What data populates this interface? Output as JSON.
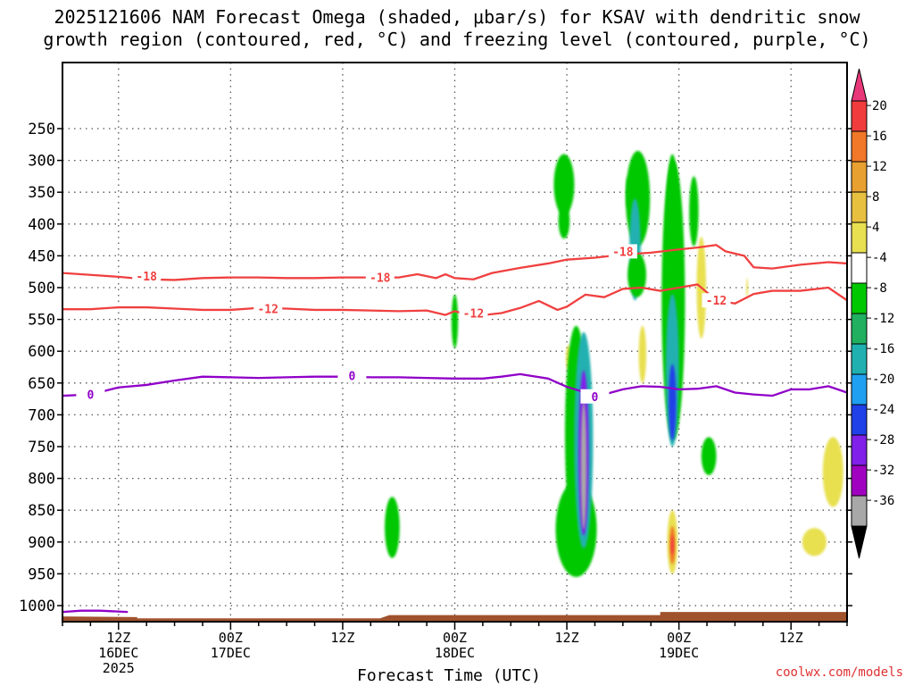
{
  "title": {
    "line1": "2025121606 NAM Forecast Omega (shaded, μbar/s) for KSAV with dendritic snow",
    "line2": "growth region (contoured, red, °C) and freezing level (contoured, purple, °C)"
  },
  "credit": "coolwx.com/models",
  "chart_data": {
    "type": "heatmap",
    "xlabel": "Forecast Time (UTC)",
    "x_unit": "forecast hour",
    "xlim": [
      6,
      90
    ],
    "x_ticks": [
      {
        "hour": 12,
        "lines": [
          "12Z",
          "16DEC",
          "2025"
        ]
      },
      {
        "hour": 24,
        "lines": [
          "00Z",
          "17DEC"
        ]
      },
      {
        "hour": 36,
        "lines": [
          "12Z"
        ]
      },
      {
        "hour": 48,
        "lines": [
          "00Z",
          "18DEC"
        ]
      },
      {
        "hour": 60,
        "lines": [
          "12Z"
        ]
      },
      {
        "hour": 72,
        "lines": [
          "00Z",
          "19DEC"
        ]
      },
      {
        "hour": 84,
        "lines": [
          "12Z"
        ]
      }
    ],
    "y_unit": "hPa",
    "ylim": [
      1030,
      200
    ],
    "y_ticks": [
      250,
      300,
      350,
      400,
      450,
      500,
      550,
      600,
      650,
      700,
      750,
      800,
      850,
      900,
      950,
      1000
    ],
    "grid": true,
    "colorbar": {
      "position": "right",
      "ticks": [
        20,
        16,
        12,
        8,
        4,
        -4,
        -8,
        -12,
        -16,
        -20,
        -24,
        -28,
        -32,
        -36
      ],
      "colors": [
        "#e8387a",
        "#f03c3c",
        "#f07828",
        "#e8a030",
        "#e8c040",
        "#e8e050",
        "#ffffff",
        "#00c800",
        "#20b060",
        "#20b0b0",
        "#20a0f0",
        "#2040e8",
        "#8020e8",
        "#a000c0",
        "#a8a8a8",
        "#000000"
      ]
    },
    "contours": [
      {
        "level": "-18",
        "color": "#f04040",
        "points": [
          [
            6,
            477
          ],
          [
            9,
            480
          ],
          [
            12,
            483
          ],
          [
            15,
            487
          ],
          [
            18,
            488
          ],
          [
            21,
            485
          ],
          [
            24,
            484
          ],
          [
            27,
            484
          ],
          [
            30,
            485
          ],
          [
            33,
            485
          ],
          [
            36,
            484
          ],
          [
            39,
            484
          ],
          [
            42,
            484
          ],
          [
            44,
            479
          ],
          [
            46,
            485
          ],
          [
            47,
            479
          ],
          [
            48,
            485
          ],
          [
            50,
            487
          ],
          [
            52,
            477
          ],
          [
            55,
            469
          ],
          [
            58,
            462
          ],
          [
            60,
            456
          ],
          [
            63,
            453
          ],
          [
            66,
            448
          ],
          [
            69,
            445
          ],
          [
            72,
            440
          ],
          [
            74,
            437
          ],
          [
            76,
            433
          ],
          [
            77,
            443
          ],
          [
            79,
            450
          ],
          [
            80,
            468
          ],
          [
            82,
            470
          ],
          [
            85,
            464
          ],
          [
            88,
            460
          ],
          [
            90,
            462
          ]
        ],
        "labels": [
          [
            15,
            482
          ],
          [
            40,
            484
          ],
          [
            66,
            443
          ]
        ]
      },
      {
        "level": "-12",
        "color": "#f04040",
        "points": [
          [
            6,
            534
          ],
          [
            9,
            534
          ],
          [
            12,
            531
          ],
          [
            15,
            531
          ],
          [
            18,
            533
          ],
          [
            21,
            535
          ],
          [
            24,
            535
          ],
          [
            27,
            532
          ],
          [
            30,
            533
          ],
          [
            33,
            535
          ],
          [
            36,
            535
          ],
          [
            39,
            536
          ],
          [
            42,
            537
          ],
          [
            45,
            536
          ],
          [
            47,
            543
          ],
          [
            48,
            537
          ],
          [
            50,
            545
          ],
          [
            53,
            540
          ],
          [
            55,
            532
          ],
          [
            57,
            521
          ],
          [
            59,
            535
          ],
          [
            60,
            530
          ],
          [
            62,
            511
          ],
          [
            64,
            515
          ],
          [
            66,
            502
          ],
          [
            68,
            500
          ],
          [
            70,
            505
          ],
          [
            72,
            500
          ],
          [
            74,
            495
          ],
          [
            76,
            520
          ],
          [
            78,
            525
          ],
          [
            80,
            510
          ],
          [
            82,
            505
          ],
          [
            85,
            505
          ],
          [
            88,
            500
          ],
          [
            90,
            520
          ]
        ],
        "labels": [
          [
            28,
            533
          ],
          [
            50,
            540
          ],
          [
            76,
            520
          ]
        ]
      },
      {
        "level": "0",
        "color": "#9000c8",
        "points": [
          [
            6,
            670
          ],
          [
            9,
            668
          ],
          [
            12,
            657
          ],
          [
            15,
            653
          ],
          [
            18,
            646
          ],
          [
            21,
            640
          ],
          [
            24,
            641
          ],
          [
            27,
            642
          ],
          [
            30,
            641
          ],
          [
            33,
            640
          ],
          [
            36,
            640
          ],
          [
            39,
            641
          ],
          [
            42,
            641
          ],
          [
            45,
            642
          ],
          [
            48,
            643
          ],
          [
            51,
            643
          ],
          [
            53,
            640
          ],
          [
            55,
            636
          ],
          [
            58,
            643
          ],
          [
            60,
            656
          ],
          [
            62,
            665
          ],
          [
            64,
            668
          ],
          [
            66,
            660
          ],
          [
            68,
            655
          ],
          [
            70,
            656
          ],
          [
            72,
            660
          ],
          [
            74,
            659
          ],
          [
            76,
            655
          ],
          [
            78,
            665
          ],
          [
            80,
            668
          ],
          [
            82,
            670
          ],
          [
            84,
            660
          ],
          [
            86,
            660
          ],
          [
            88,
            655
          ],
          [
            90,
            665
          ]
        ],
        "labels": [
          [
            9,
            668
          ],
          [
            37,
            638
          ],
          [
            63,
            671
          ]
        ]
      },
      {
        "level": "",
        "color": "#9000c8",
        "points": [
          [
            6,
            1010
          ],
          [
            8,
            1008
          ],
          [
            10,
            1008
          ],
          [
            13,
            1010
          ]
        ]
      }
    ],
    "omega_blobs": [
      {
        "h": 41.3,
        "p": 877,
        "dh": 0.8,
        "dp": 48,
        "v": -5
      },
      {
        "h": 48.0,
        "p": 553,
        "dh": 0.35,
        "dp": 42,
        "v": -5
      },
      {
        "h": 59.7,
        "p": 338,
        "dh": 1.1,
        "dp": 48,
        "v": -5
      },
      {
        "h": 59.7,
        "p": 395,
        "dh": 0.6,
        "dp": 28,
        "v": -5
      },
      {
        "h": 60.2,
        "p": 610,
        "dh": 0.3,
        "dp": 20,
        "v": 5
      },
      {
        "h": 61.0,
        "p": 730,
        "dh": 1.2,
        "dp": 170,
        "v": -6
      },
      {
        "h": 61.0,
        "p": 880,
        "dh": 2.2,
        "dp": 75,
        "v": -7
      },
      {
        "h": 61.8,
        "p": 740,
        "dh": 1.0,
        "dp": 170,
        "v": -15
      },
      {
        "h": 61.8,
        "p": 760,
        "dh": 0.55,
        "dp": 130,
        "v": -24
      },
      {
        "h": 61.8,
        "p": 780,
        "dh": 0.3,
        "dp": 100,
        "v": -32
      },
      {
        "h": 66.5,
        "p": 350,
        "dh": 0.15,
        "dp": 25,
        "v": -5
      },
      {
        "h": 67.6,
        "p": 360,
        "dh": 1.3,
        "dp": 75,
        "v": -6
      },
      {
        "h": 67.3,
        "p": 440,
        "dh": 0.6,
        "dp": 80,
        "v": -12
      },
      {
        "h": 67.5,
        "p": 480,
        "dh": 1.0,
        "dp": 35,
        "v": -6
      },
      {
        "h": 68.1,
        "p": 605,
        "dh": 0.4,
        "dp": 45,
        "v": 5
      },
      {
        "h": 70.7,
        "p": 550,
        "dh": 0.15,
        "dp": 18,
        "v": -5
      },
      {
        "h": 71.3,
        "p": 420,
        "dh": 0.75,
        "dp": 130,
        "v": -6
      },
      {
        "h": 71.4,
        "p": 520,
        "dh": 1.25,
        "dp": 220,
        "v": -6
      },
      {
        "h": 71.3,
        "p": 630,
        "dh": 0.7,
        "dp": 120,
        "v": -12
      },
      {
        "h": 71.3,
        "p": 680,
        "dh": 0.4,
        "dp": 60,
        "v": -22
      },
      {
        "h": 71.3,
        "p": 900,
        "dh": 0.55,
        "dp": 50,
        "v": 6
      },
      {
        "h": 71.3,
        "p": 905,
        "dh": 0.3,
        "dp": 30,
        "v": 12
      },
      {
        "h": 71.3,
        "p": 905,
        "dh": 0.15,
        "dp": 15,
        "v": 17
      },
      {
        "h": 73.6,
        "p": 380,
        "dh": 0.5,
        "dp": 55,
        "v": -5
      },
      {
        "h": 74.4,
        "p": 500,
        "dh": 0.5,
        "dp": 80,
        "v": 5
      },
      {
        "h": 75.2,
        "p": 765,
        "dh": 0.8,
        "dp": 30,
        "v": -6
      },
      {
        "h": 79.3,
        "p": 500,
        "dh": 0.1,
        "dp": 15,
        "v": 5
      },
      {
        "h": 86.5,
        "p": 900,
        "dh": 1.3,
        "dp": 22,
        "v": 5
      },
      {
        "h": 88.5,
        "p": 790,
        "dh": 1.1,
        "dp": 55,
        "v": 5
      }
    ],
    "terrain": {
      "color": "#a0522d",
      "levels": [
        [
          6,
          1017
        ],
        [
          14,
          1018
        ],
        [
          14,
          1020
        ],
        [
          40,
          1020
        ],
        [
          41,
          1015
        ],
        [
          70,
          1015
        ],
        [
          70,
          1010
        ],
        [
          90,
          1010
        ]
      ]
    }
  }
}
